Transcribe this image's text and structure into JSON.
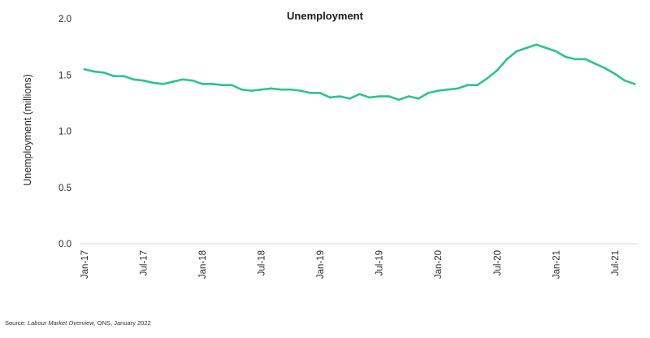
{
  "chart_data": {
    "type": "line",
    "title": "Unemployment",
    "xlabel": "",
    "ylabel": "Unemployment (millions)",
    "ylim": [
      0,
      2.0
    ],
    "yticks": [
      "0.0",
      "0.5",
      "1.0",
      "1.5",
      "2.0"
    ],
    "xtick_labels": [
      "Jan-17",
      "Jul-17",
      "Jan-18",
      "Jul-18",
      "Jan-19",
      "Jul-19",
      "Jan-20",
      "Jul-20",
      "Jan-21",
      "Jul-21"
    ],
    "grid": false,
    "legend": "none",
    "color": "#2dc48d",
    "series": [
      {
        "x": [
          "Jan-17",
          "Feb-17",
          "Mar-17",
          "Apr-17",
          "May-17",
          "Jun-17",
          "Jul-17",
          "Aug-17",
          "Sep-17",
          "Oct-17",
          "Nov-17",
          "Dec-17",
          "Jan-18",
          "Feb-18",
          "Mar-18",
          "Apr-18",
          "May-18",
          "Jun-18",
          "Jul-18",
          "Aug-18",
          "Sep-18",
          "Oct-18",
          "Nov-18",
          "Dec-18",
          "Jan-19",
          "Feb-19",
          "Mar-19",
          "Apr-19",
          "May-19",
          "Jun-19",
          "Jul-19",
          "Aug-19",
          "Sep-19",
          "Oct-19",
          "Nov-19",
          "Dec-19",
          "Jan-20",
          "Feb-20",
          "Mar-20",
          "Apr-20",
          "May-20",
          "Jun-20",
          "Jul-20",
          "Aug-20",
          "Sep-20",
          "Oct-20",
          "Nov-20",
          "Dec-20",
          "Jan-21",
          "Feb-21",
          "Mar-21",
          "Apr-21",
          "May-21",
          "Jun-21",
          "Jul-21",
          "Aug-21",
          "Sep-21"
        ],
        "values": [
          1.55,
          1.53,
          1.52,
          1.49,
          1.49,
          1.46,
          1.45,
          1.43,
          1.42,
          1.44,
          1.46,
          1.45,
          1.42,
          1.42,
          1.41,
          1.41,
          1.37,
          1.36,
          1.37,
          1.38,
          1.37,
          1.37,
          1.36,
          1.34,
          1.34,
          1.3,
          1.31,
          1.29,
          1.33,
          1.3,
          1.31,
          1.31,
          1.28,
          1.31,
          1.29,
          1.34,
          1.36,
          1.37,
          1.38,
          1.41,
          1.41,
          1.47,
          1.54,
          1.64,
          1.71,
          1.74,
          1.77,
          1.74,
          1.71,
          1.66,
          1.64,
          1.64,
          1.6,
          1.56,
          1.51,
          1.45,
          1.42
        ]
      }
    ]
  },
  "source": {
    "prefix": "Source: ",
    "publication": "Labour Market Overview",
    "suffix": ", ONS, January 2022"
  }
}
